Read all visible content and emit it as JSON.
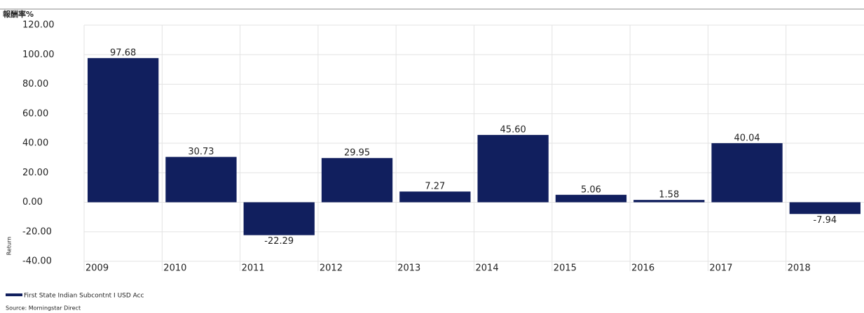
{
  "chart_data": {
    "type": "bar",
    "y_axis_title": "報酬率%",
    "y_axis_label": "Return",
    "categories": [
      "2009",
      "2010",
      "2011",
      "2012",
      "2013",
      "2014",
      "2015",
      "2016",
      "2017",
      "2018"
    ],
    "series": [
      {
        "name": "First State Indian Subcontnt I USD Acc",
        "color": "#111f5e",
        "values": [
          97.68,
          30.73,
          -22.29,
          29.95,
          7.27,
          45.6,
          5.06,
          1.58,
          40.04,
          -7.94
        ],
        "value_labels": [
          "97.68",
          "30.73",
          "-22.29",
          "29.95",
          "7.27",
          "45.60",
          "5.06",
          "1.58",
          "40.04",
          "-7.94"
        ]
      }
    ],
    "ylim": [
      -40,
      120
    ],
    "yticks": [
      {
        "value": -40,
        "label": "-40.00"
      },
      {
        "value": -20,
        "label": "-20.00"
      },
      {
        "value": 0,
        "label": "0.00"
      },
      {
        "value": 20,
        "label": "20.00"
      },
      {
        "value": 40,
        "label": "40.00"
      },
      {
        "value": 60,
        "label": "60.00"
      },
      {
        "value": 80,
        "label": "80.00"
      },
      {
        "value": 100,
        "label": "100.00"
      },
      {
        "value": 120,
        "label": "120.00"
      }
    ],
    "grid": true,
    "source": "Source: Morningstar Direct"
  }
}
